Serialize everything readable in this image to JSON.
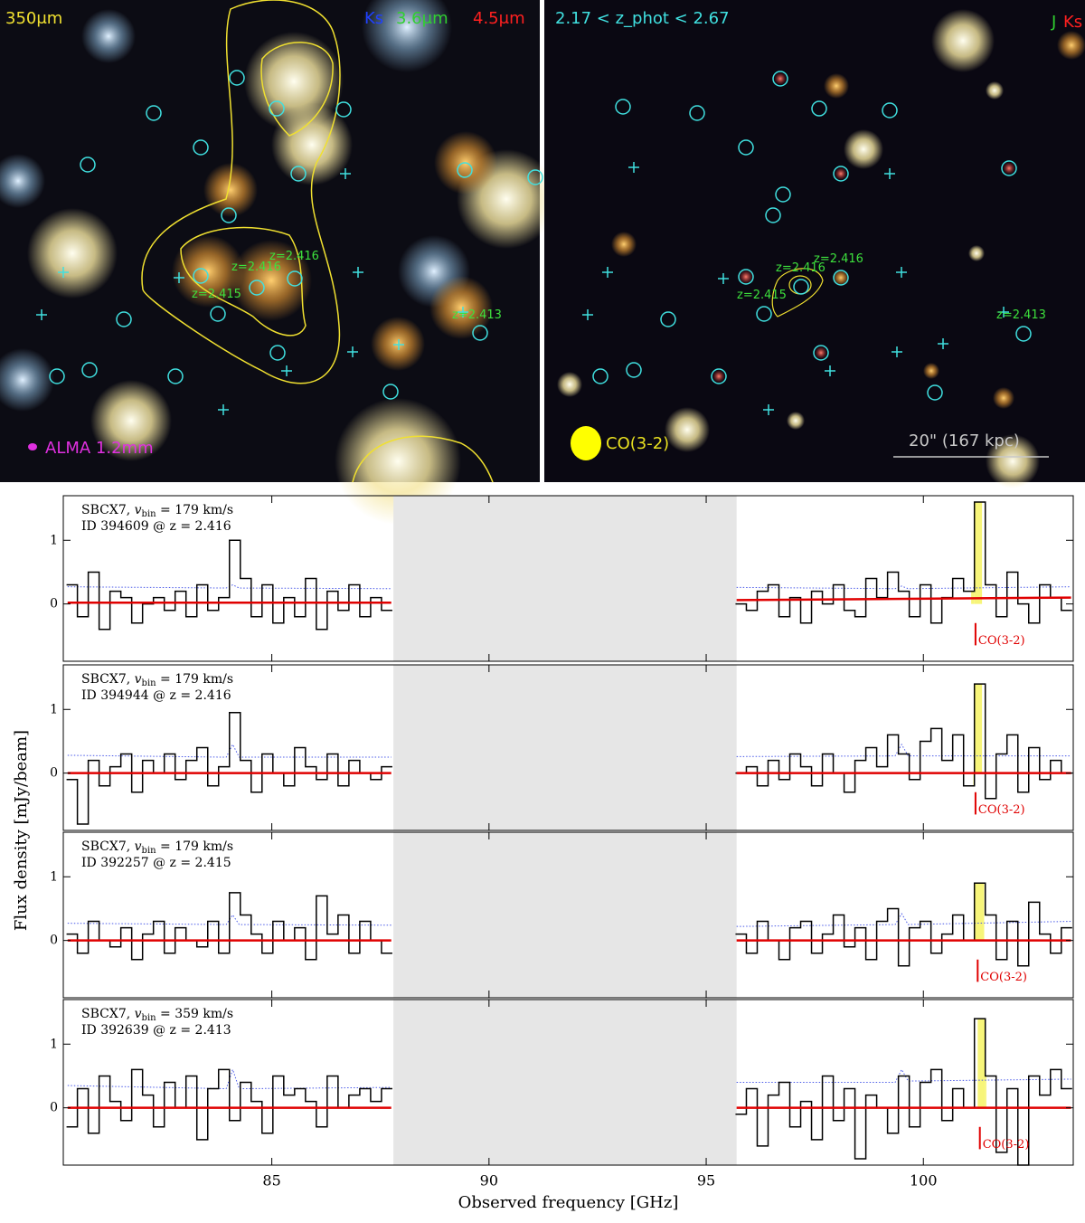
{
  "images": {
    "left": {
      "band_label": "350μm",
      "filters": [
        "Ks",
        "3.6μm",
        "4.5μm"
      ],
      "beam_label": "ALMA 1.2mm",
      "z_labels": [
        "z=2.416",
        "z=2.416",
        "z=2.415",
        "z=2.413"
      ]
    },
    "right": {
      "range_label": "2.17 < z_phot < 2.67",
      "filters": [
        "J",
        "Ks"
      ],
      "z_labels": [
        "z=2.416",
        "z=2.416",
        "z=2.415",
        "z=2.413"
      ],
      "beam_label": "CO(3-2)",
      "scale_label": "20\" (167 kpc)"
    }
  },
  "ylabel": "Flux density [mJy/beam]",
  "chart_data": [
    {
      "type": "step",
      "annotation": {
        "parts": [
          "SBCX7, ",
          "v",
          "bin",
          " = 179 km/s"
        ],
        "id": "ID 394609 @ z = 2.416"
      },
      "xlim": [
        80.2,
        103.45
      ],
      "ylim": [
        -0.9,
        1.7
      ],
      "yticks": [
        0,
        1
      ],
      "masked": [
        87.8,
        95.7
      ],
      "highlight": [
        101.1,
        101.35
      ],
      "line_marker": {
        "x": 101.2,
        "label": "CO(3-2)"
      },
      "x": [
        80.4,
        80.65,
        80.9,
        81.15,
        81.4,
        81.65,
        81.9,
        82.15,
        82.4,
        82.65,
        82.9,
        83.15,
        83.4,
        83.65,
        83.9,
        84.15,
        84.4,
        84.65,
        84.9,
        85.15,
        85.4,
        85.65,
        85.9,
        86.15,
        86.4,
        86.65,
        86.9,
        87.15,
        87.4,
        87.65,
        91.75,
        95.8,
        96.05,
        96.3,
        96.55,
        96.8,
        97.05,
        97.3,
        97.55,
        97.8,
        98.05,
        98.3,
        98.55,
        98.8,
        99.05,
        99.3,
        99.55,
        99.8,
        100.05,
        100.3,
        100.55,
        100.8,
        101.05,
        101.3,
        101.55,
        101.8,
        102.05,
        102.3,
        102.55,
        102.8,
        103.05,
        103.3
      ],
      "values": [
        0.3,
        -0.2,
        0.5,
        -0.4,
        0.2,
        0.1,
        -0.3,
        0.0,
        0.1,
        -0.1,
        0.2,
        -0.2,
        0.3,
        -0.1,
        0.1,
        1.0,
        0.4,
        -0.2,
        0.3,
        -0.3,
        0.1,
        -0.2,
        0.4,
        -0.4,
        0.2,
        -0.1,
        0.3,
        -0.2,
        0.1,
        -0.1,
        null,
        0.0,
        -0.1,
        0.2,
        0.3,
        -0.2,
        0.1,
        -0.3,
        0.2,
        0.0,
        0.3,
        -0.1,
        -0.2,
        0.4,
        0.1,
        0.5,
        0.2,
        -0.2,
        0.3,
        -0.3,
        0.1,
        0.4,
        0.2,
        1.6,
        0.3,
        -0.2,
        0.5,
        0.0,
        -0.3,
        0.3,
        0.1,
        -0.1
      ],
      "noise": {
        "color": "#4a5ae8",
        "x": [
          80.3,
          83.95,
          84.1,
          84.25,
          87.75,
          91.75,
          95.7,
          99.35,
          99.5,
          99.65,
          103.4
        ],
        "values": [
          0.27,
          0.25,
          0.3,
          0.25,
          0.24,
          null,
          0.26,
          0.24,
          0.28,
          0.24,
          0.27
        ]
      },
      "baseline": {
        "color": "#e00000",
        "x": [
          80.3,
          87.75,
          91.75,
          95.7,
          103.4
        ],
        "values": [
          0.02,
          0.02,
          null,
          0.06,
          0.1
        ]
      }
    },
    {
      "type": "step",
      "annotation": {
        "parts": [
          "SBCX7, ",
          "v",
          "bin",
          " = 179 km/s"
        ],
        "id": "ID 394944 @ z = 2.416"
      },
      "xlim": [
        80.2,
        103.45
      ],
      "ylim": [
        -0.9,
        1.7
      ],
      "yticks": [
        0,
        1
      ],
      "masked": [
        87.8,
        95.7
      ],
      "highlight": [
        101.15,
        101.35
      ],
      "line_marker": {
        "x": 101.2,
        "label": "CO(3-2)"
      },
      "x": [
        80.4,
        80.65,
        80.9,
        81.15,
        81.4,
        81.65,
        81.9,
        82.15,
        82.4,
        82.65,
        82.9,
        83.15,
        83.4,
        83.65,
        83.9,
        84.15,
        84.4,
        84.65,
        84.9,
        85.15,
        85.4,
        85.65,
        85.9,
        86.15,
        86.4,
        86.65,
        86.9,
        87.15,
        87.4,
        87.65,
        91.75,
        95.8,
        96.05,
        96.3,
        96.55,
        96.8,
        97.05,
        97.3,
        97.55,
        97.8,
        98.05,
        98.3,
        98.55,
        98.8,
        99.05,
        99.3,
        99.55,
        99.8,
        100.05,
        100.3,
        100.55,
        100.8,
        101.05,
        101.3,
        101.55,
        101.8,
        102.05,
        102.3,
        102.55,
        102.8,
        103.05,
        103.3
      ],
      "values": [
        -0.1,
        -0.8,
        0.2,
        -0.2,
        0.1,
        0.3,
        -0.3,
        0.2,
        0.0,
        0.3,
        -0.1,
        0.2,
        0.4,
        -0.2,
        0.1,
        0.95,
        0.2,
        -0.3,
        0.3,
        0.0,
        -0.2,
        0.4,
        0.1,
        -0.1,
        0.3,
        -0.2,
        0.2,
        0.0,
        -0.1,
        0.1,
        null,
        0.0,
        0.1,
        -0.2,
        0.2,
        -0.1,
        0.3,
        0.1,
        -0.2,
        0.3,
        0.0,
        -0.3,
        0.2,
        0.4,
        0.1,
        0.6,
        0.3,
        -0.1,
        0.5,
        0.7,
        0.2,
        0.6,
        -0.2,
        1.4,
        -0.4,
        0.3,
        0.6,
        -0.3,
        0.4,
        -0.1,
        0.2,
        0.0
      ],
      "noise": {
        "color": "#4a5ae8",
        "x": [
          80.3,
          83.95,
          84.1,
          84.25,
          87.75,
          91.75,
          95.7,
          99.35,
          99.5,
          99.65,
          103.4
        ],
        "values": [
          0.28,
          0.25,
          0.45,
          0.25,
          0.25,
          null,
          0.26,
          0.27,
          0.45,
          0.27,
          0.27
        ]
      },
      "baseline": {
        "color": "#e00000",
        "x": [
          80.3,
          87.75,
          91.75,
          95.7,
          103.4
        ],
        "values": [
          0,
          0,
          null,
          0,
          0
        ]
      }
    },
    {
      "type": "step",
      "annotation": {
        "parts": [
          "SBCX7, ",
          "v",
          "bin",
          " = 179 km/s"
        ],
        "id": "ID 392257 @ z = 2.415"
      },
      "xlim": [
        80.2,
        103.45
      ],
      "ylim": [
        -0.9,
        1.7
      ],
      "yticks": [
        0,
        1
      ],
      "masked": [
        87.8,
        95.7
      ],
      "highlight": [
        101.15,
        101.4
      ],
      "line_marker": {
        "x": 101.25,
        "label": "CO(3-2)"
      },
      "x": [
        80.4,
        80.65,
        80.9,
        81.15,
        81.4,
        81.65,
        81.9,
        82.15,
        82.4,
        82.65,
        82.9,
        83.15,
        83.4,
        83.65,
        83.9,
        84.15,
        84.4,
        84.65,
        84.9,
        85.15,
        85.4,
        85.65,
        85.9,
        86.15,
        86.4,
        86.65,
        86.9,
        87.15,
        87.4,
        87.65,
        91.75,
        95.8,
        96.05,
        96.3,
        96.55,
        96.8,
        97.05,
        97.3,
        97.55,
        97.8,
        98.05,
        98.3,
        98.55,
        98.8,
        99.05,
        99.3,
        99.55,
        99.8,
        100.05,
        100.3,
        100.55,
        100.8,
        101.05,
        101.3,
        101.55,
        101.8,
        102.05,
        102.3,
        102.55,
        102.8,
        103.05,
        103.3
      ],
      "values": [
        0.1,
        -0.2,
        0.3,
        0.0,
        -0.1,
        0.2,
        -0.3,
        0.1,
        0.3,
        -0.2,
        0.2,
        0.0,
        -0.1,
        0.3,
        -0.2,
        0.75,
        0.4,
        0.1,
        -0.2,
        0.3,
        0.0,
        0.2,
        -0.3,
        0.7,
        0.1,
        0.4,
        -0.2,
        0.3,
        0.0,
        -0.2,
        null,
        0.1,
        -0.2,
        0.3,
        0.0,
        -0.3,
        0.2,
        0.3,
        -0.2,
        0.1,
        0.4,
        -0.1,
        0.2,
        -0.3,
        0.3,
        0.5,
        -0.4,
        0.2,
        0.3,
        -0.2,
        0.1,
        0.4,
        0.0,
        0.9,
        0.4,
        -0.3,
        0.3,
        -0.4,
        0.6,
        0.1,
        -0.2,
        0.2
      ],
      "noise": {
        "color": "#4a5ae8",
        "x": [
          80.3,
          83.95,
          84.1,
          84.25,
          87.75,
          91.75,
          95.7,
          99.35,
          99.5,
          99.65,
          103.4
        ],
        "values": [
          0.27,
          0.25,
          0.4,
          0.25,
          0.24,
          null,
          0.22,
          0.25,
          0.42,
          0.25,
          0.3
        ]
      },
      "baseline": {
        "color": "#e00000",
        "x": [
          80.3,
          87.75,
          91.75,
          95.7,
          103.4
        ],
        "values": [
          0,
          0,
          null,
          0,
          0
        ]
      }
    },
    {
      "type": "step",
      "annotation": {
        "parts": [
          "SBCX7, ",
          "v",
          "bin",
          " = 359 km/s"
        ],
        "id": "ID 392639 @ z = 2.413"
      },
      "xlim": [
        80.2,
        103.45
      ],
      "ylim": [
        -0.9,
        1.7
      ],
      "yticks": [
        0,
        1
      ],
      "xticks": [
        85,
        90,
        95,
        100
      ],
      "xlabel": "Observed frequency [GHz]",
      "masked": [
        87.8,
        95.7
      ],
      "highlight": [
        101.25,
        101.45
      ],
      "line_marker": {
        "x": 101.3,
        "label": "CO(3-2)"
      },
      "x": [
        80.4,
        80.65,
        80.9,
        81.15,
        81.4,
        81.65,
        81.9,
        82.15,
        82.4,
        82.65,
        82.9,
        83.15,
        83.4,
        83.65,
        83.9,
        84.15,
        84.4,
        84.65,
        84.9,
        85.15,
        85.4,
        85.65,
        85.9,
        86.15,
        86.4,
        86.65,
        86.9,
        87.15,
        87.4,
        87.65,
        91.75,
        95.8,
        96.05,
        96.3,
        96.55,
        96.8,
        97.05,
        97.3,
        97.55,
        97.8,
        98.05,
        98.3,
        98.55,
        98.8,
        99.05,
        99.3,
        99.55,
        99.8,
        100.05,
        100.3,
        100.55,
        100.8,
        101.05,
        101.3,
        101.55,
        101.8,
        102.05,
        102.3,
        102.55,
        102.8,
        103.05,
        103.3
      ],
      "values": [
        -0.3,
        0.3,
        -0.4,
        0.5,
        0.1,
        -0.2,
        0.6,
        0.2,
        -0.3,
        0.4,
        0.0,
        0.5,
        -0.5,
        0.3,
        0.6,
        -0.2,
        0.4,
        0.1,
        -0.4,
        0.5,
        0.2,
        0.3,
        0.1,
        -0.3,
        0.5,
        0.0,
        0.2,
        0.3,
        0.1,
        0.3,
        null,
        -0.1,
        0.3,
        -0.6,
        0.2,
        0.4,
        -0.3,
        0.1,
        -0.5,
        0.5,
        -0.2,
        0.3,
        -0.8,
        0.2,
        0.0,
        -0.4,
        0.5,
        -0.3,
        0.4,
        0.6,
        -0.2,
        0.3,
        0.0,
        1.4,
        0.5,
        -0.7,
        0.3,
        -0.9,
        0.5,
        0.2,
        0.6,
        0.3
      ],
      "noise": {
        "color": "#4a5ae8",
        "x": [
          80.3,
          83.95,
          84.1,
          84.25,
          87.75,
          91.75,
          95.7,
          99.35,
          99.5,
          99.65,
          103.4
        ],
        "values": [
          0.35,
          0.3,
          0.6,
          0.3,
          0.32,
          null,
          0.4,
          0.4,
          0.6,
          0.42,
          0.45
        ]
      },
      "baseline": {
        "color": "#e00000",
        "x": [
          80.3,
          87.75,
          91.75,
          95.7,
          103.4
        ],
        "values": [
          0,
          0,
          null,
          0,
          0
        ]
      }
    }
  ]
}
